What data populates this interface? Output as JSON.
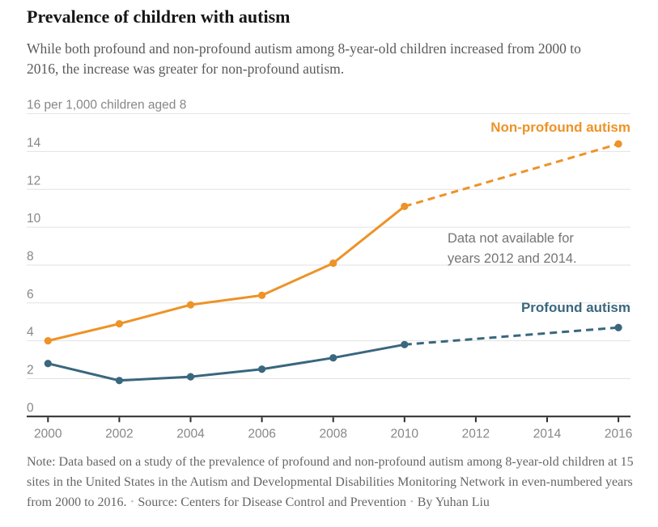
{
  "header": {
    "title": "Prevalence of children with autism",
    "subtitle": "While both profound and non-profound autism among 8-year-old children increased from 2000 to 2016, the increase was greater for non-profound autism."
  },
  "chart_data": {
    "type": "line",
    "unit_label": "16 per 1,000 children aged 8",
    "ylim": [
      0,
      16
    ],
    "y_ticks": [
      0,
      2,
      4,
      6,
      8,
      10,
      12,
      14
    ],
    "x_ticks": [
      2000,
      2002,
      2004,
      2006,
      2008,
      2010,
      2012,
      2014,
      2016
    ],
    "x": [
      2000,
      2002,
      2004,
      2006,
      2008,
      2010,
      2016
    ],
    "series": [
      {
        "name": "Non-profound autism",
        "color": "#ED9327",
        "values": [
          4.0,
          4.9,
          5.9,
          6.4,
          8.1,
          11.1,
          14.4
        ],
        "dashed_after_x": 2010
      },
      {
        "name": "Profound autism",
        "color": "#39677E",
        "values": [
          2.8,
          1.9,
          2.1,
          2.5,
          3.1,
          3.8,
          4.7
        ],
        "dashed_after_x": 2010
      }
    ],
    "missing_years": [
      2012,
      2014
    ],
    "annotation": "Data not available for\nyears 2012 and 2014.",
    "grid": "horizontal",
    "legend_position": "inline-right",
    "colors": {
      "gridline": "#E2E2E2",
      "axis": "#2b2b2b",
      "axis_label": "#878787"
    }
  },
  "footer": {
    "note": "Note: Data based on a study of the prevalence of profound and non-profound autism among 8-year-old children at 15 sites in the United States in the Autism and Developmental Disabilities Monitoring Network in even-numbered years from 2000 to 2016.",
    "source": "Source: Centers for Disease Control and Prevention",
    "byline": "By Yuhan Liu",
    "separator": "•"
  }
}
